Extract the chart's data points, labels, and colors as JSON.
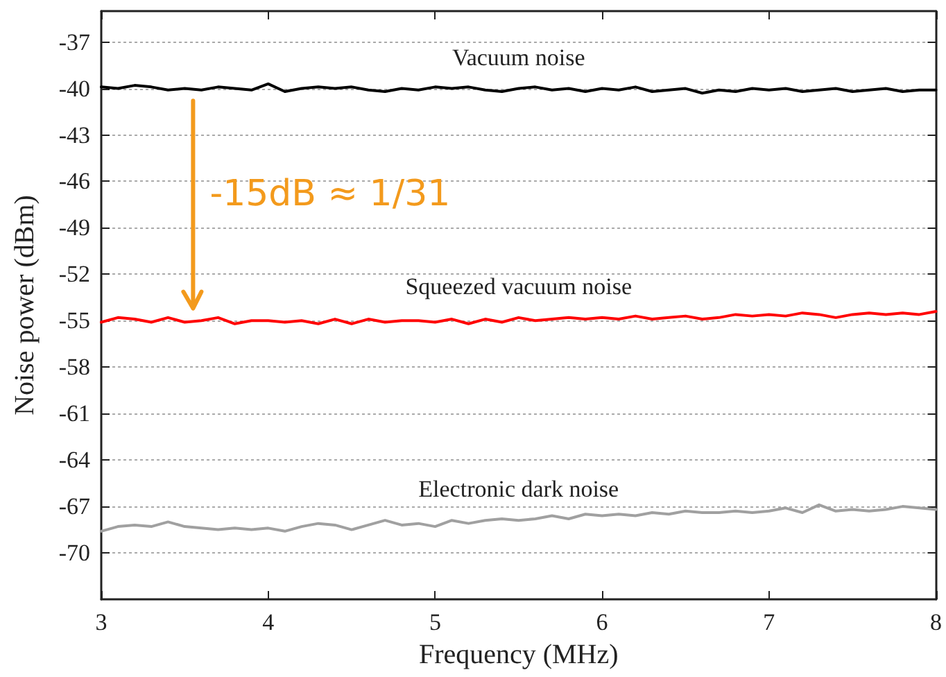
{
  "chart_data": {
    "type": "line",
    "xlabel": "Frequency (MHz)",
    "ylabel": "Noise power (dBm)",
    "annotations": [
      "-15dB ≈ 1/31"
    ],
    "x": [
      3.0,
      3.1,
      3.2,
      3.3,
      3.4,
      3.5,
      3.6,
      3.7,
      3.8,
      3.9,
      4.0,
      4.1,
      4.2,
      4.3,
      4.4,
      4.5,
      4.6,
      4.7,
      4.8,
      4.9,
      5.0,
      5.1,
      5.2,
      5.3,
      5.4,
      5.5,
      5.6,
      5.7,
      5.8,
      5.9,
      6.0,
      6.1,
      6.2,
      6.3,
      6.4,
      6.5,
      6.6,
      6.7,
      6.8,
      6.9,
      7.0,
      7.1,
      7.2,
      7.3,
      7.4,
      7.5,
      7.6,
      7.7,
      7.8,
      7.9,
      8.0
    ],
    "series": [
      {
        "name": "Vacuum noise",
        "color": "#000000",
        "values": [
          -39.9,
          -40.0,
          -39.8,
          -39.9,
          -40.1,
          -40.0,
          -40.1,
          -39.9,
          -40.0,
          -40.1,
          -39.7,
          -40.2,
          -40.0,
          -39.9,
          -40.0,
          -39.9,
          -40.1,
          -40.2,
          -40.0,
          -40.1,
          -39.9,
          -40.0,
          -39.9,
          -40.1,
          -40.2,
          -40.0,
          -39.9,
          -40.1,
          -40.0,
          -40.2,
          -40.0,
          -40.1,
          -39.9,
          -40.2,
          -40.1,
          -40.0,
          -40.3,
          -40.1,
          -40.2,
          -40.0,
          -40.1,
          -40.0,
          -40.2,
          -40.1,
          -40.0,
          -40.2,
          -40.1,
          -40.0,
          -40.2,
          -40.1,
          -40.1
        ]
      },
      {
        "name": "Squeezed vacuum noise",
        "color": "#ff0000",
        "values": [
          -55.1,
          -54.8,
          -54.9,
          -55.1,
          -54.8,
          -55.1,
          -55.0,
          -54.8,
          -55.2,
          -55.0,
          -55.0,
          -55.1,
          -55.0,
          -55.2,
          -54.9,
          -55.2,
          -54.9,
          -55.1,
          -55.0,
          -55.0,
          -55.1,
          -54.9,
          -55.2,
          -54.9,
          -55.1,
          -54.8,
          -55.0,
          -54.9,
          -54.8,
          -54.9,
          -54.8,
          -54.9,
          -54.7,
          -54.9,
          -54.8,
          -54.7,
          -54.9,
          -54.8,
          -54.6,
          -54.7,
          -54.6,
          -54.7,
          -54.5,
          -54.6,
          -54.8,
          -54.6,
          -54.5,
          -54.6,
          -54.5,
          -54.6,
          -54.4
        ]
      },
      {
        "name": "Electronic dark noise",
        "color": "#a0a0a0",
        "values": [
          -68.6,
          -68.3,
          -68.2,
          -68.3,
          -68.0,
          -68.3,
          -68.4,
          -68.5,
          -68.4,
          -68.5,
          -68.4,
          -68.6,
          -68.3,
          -68.1,
          -68.2,
          -68.5,
          -68.2,
          -67.9,
          -68.2,
          -68.1,
          -68.3,
          -67.9,
          -68.1,
          -67.9,
          -67.8,
          -67.9,
          -67.8,
          -67.6,
          -67.8,
          -67.5,
          -67.6,
          -67.5,
          -67.6,
          -67.4,
          -67.5,
          -67.3,
          -67.4,
          -67.4,
          -67.3,
          -67.4,
          -67.3,
          -67.1,
          -67.4,
          -66.9,
          -67.3,
          -67.2,
          -67.3,
          -67.2,
          -67.0,
          -67.1,
          -67.2
        ]
      }
    ],
    "xlim": [
      3,
      8
    ],
    "xticks": [
      3,
      4,
      5,
      6,
      7,
      8
    ],
    "ylim": [
      -73,
      -35
    ],
    "yticks": [
      -37,
      -40,
      -43,
      -46,
      -49,
      -52,
      -55,
      -58,
      -61,
      -64,
      -67,
      -70
    ],
    "grid": "y",
    "legend": false,
    "marker": "none",
    "line_style": "solid"
  }
}
